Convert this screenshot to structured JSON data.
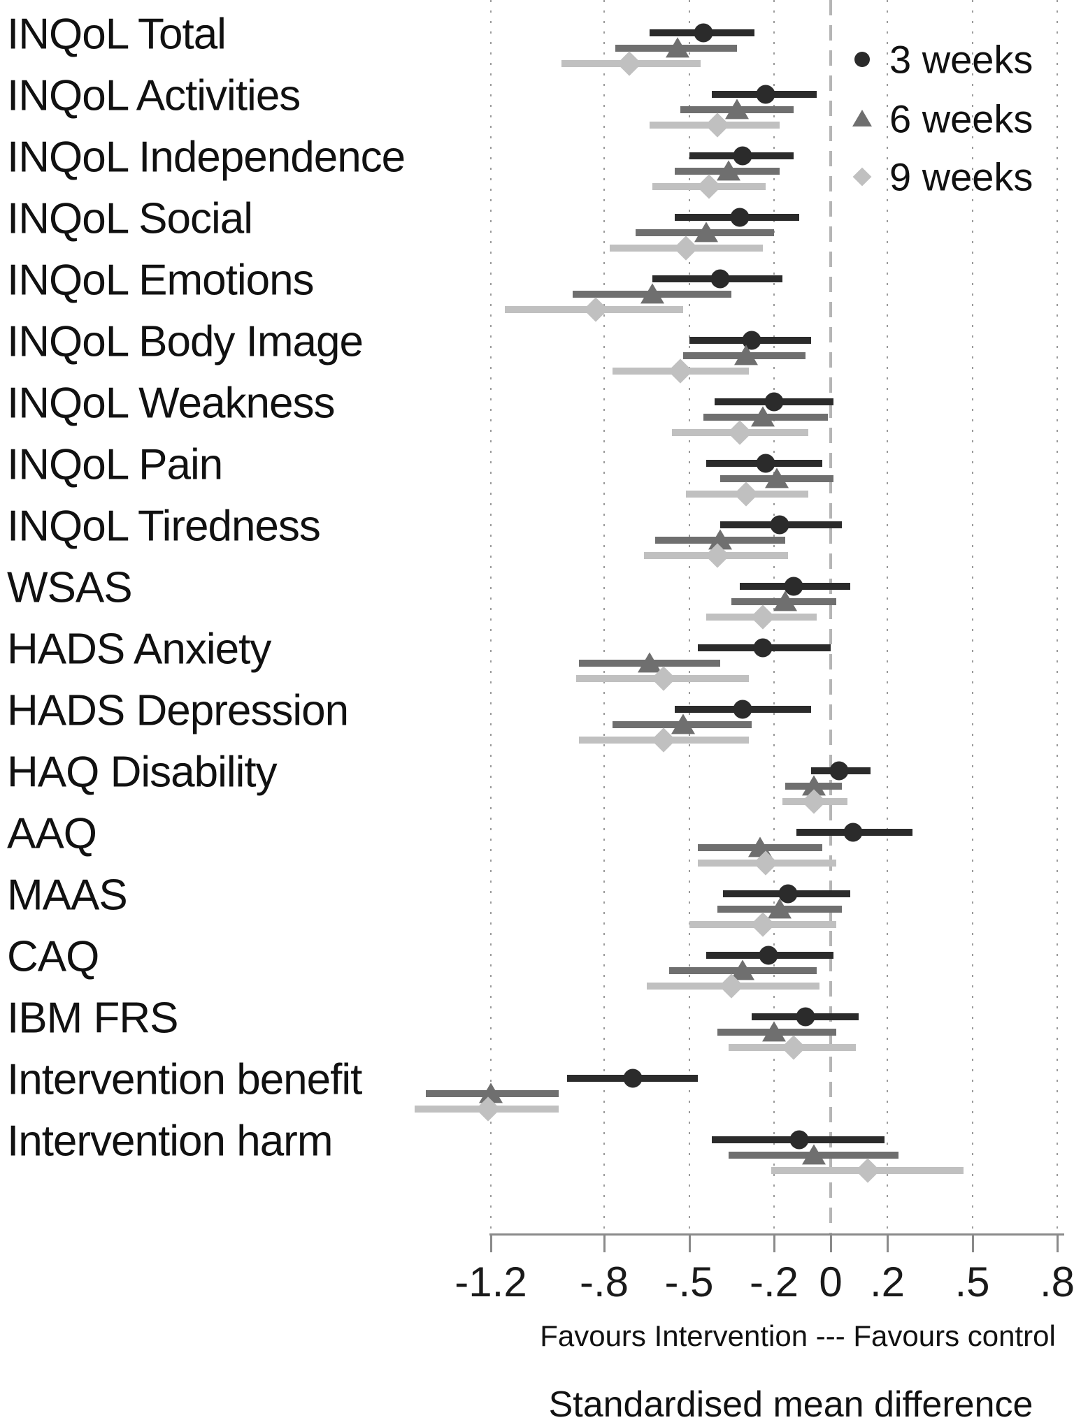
{
  "chart_data": {
    "type": "scatter",
    "variant": "forest-plot",
    "title": "",
    "xlabel": "Standardised mean difference",
    "x_note": "Favours Intervention --- Favours control",
    "xlim": [
      -1.55,
      0.85
    ],
    "ticks": [
      -1.2,
      -0.8,
      -0.5,
      -0.2,
      0,
      0.2,
      0.5,
      0.8
    ],
    "tick_labels": [
      "-1.2",
      "-.8",
      "-.5",
      "-.2",
      "0",
      ".2",
      ".5",
      ".8"
    ],
    "grid": "dotted vertical gridline at every tick; long-dashed vertical reference line at 0",
    "legend_position": "top-right inside plot",
    "colors": {
      "3_weeks": "#2b2b2b",
      "6_weeks": "#6f6f6f",
      "9_weeks": "#c0c0c0",
      "axis": "#8a8a8a",
      "gridline": "#9b9b9b",
      "zero_line": "#b5b5b5",
      "text": "#111111"
    },
    "outcomes": [
      "INQoL Total",
      "INQoL Activities",
      "INQoL Independence",
      "INQoL Social",
      "INQoL Emotions",
      "INQoL Body Image",
      "INQoL Weakness",
      "INQoL Pain",
      "INQoL Tiredness",
      "WSAS",
      "HADS Anxiety",
      "HADS Depression",
      "HAQ Disability",
      "AAQ",
      "MAAS",
      "CAQ",
      "IBM FRS",
      "Intervention benefit",
      "Intervention harm"
    ],
    "series": [
      {
        "name": "3 weeks",
        "marker": "circle",
        "color": "#2b2b2b",
        "values": [
          {
            "est": -0.45,
            "ci": [
              -0.64,
              -0.27
            ]
          },
          {
            "est": -0.23,
            "ci": [
              -0.42,
              -0.05
            ]
          },
          {
            "est": -0.31,
            "ci": [
              -0.5,
              -0.13
            ]
          },
          {
            "est": -0.32,
            "ci": [
              -0.55,
              -0.11
            ]
          },
          {
            "est": -0.39,
            "ci": [
              -0.63,
              -0.17
            ]
          },
          {
            "est": -0.28,
            "ci": [
              -0.5,
              -0.07
            ]
          },
          {
            "est": -0.2,
            "ci": [
              -0.41,
              0.01
            ]
          },
          {
            "est": -0.23,
            "ci": [
              -0.44,
              -0.03
            ]
          },
          {
            "est": -0.18,
            "ci": [
              -0.39,
              0.04
            ]
          },
          {
            "est": -0.13,
            "ci": [
              -0.32,
              0.07
            ]
          },
          {
            "est": -0.24,
            "ci": [
              -0.47,
              0.0
            ]
          },
          {
            "est": -0.31,
            "ci": [
              -0.55,
              -0.07
            ]
          },
          {
            "est": 0.03,
            "ci": [
              -0.07,
              0.14
            ]
          },
          {
            "est": 0.08,
            "ci": [
              -0.12,
              0.29
            ]
          },
          {
            "est": -0.15,
            "ci": [
              -0.38,
              0.07
            ]
          },
          {
            "est": -0.22,
            "ci": [
              -0.44,
              0.01
            ]
          },
          {
            "est": -0.09,
            "ci": [
              -0.28,
              0.1
            ]
          },
          {
            "est": -0.7,
            "ci": [
              -0.93,
              -0.47
            ]
          },
          {
            "est": -0.11,
            "ci": [
              -0.42,
              0.19
            ]
          }
        ]
      },
      {
        "name": "6 weeks",
        "marker": "triangle",
        "color": "#6f6f6f",
        "values": [
          {
            "est": -0.54,
            "ci": [
              -0.76,
              -0.33
            ]
          },
          {
            "est": -0.33,
            "ci": [
              -0.53,
              -0.13
            ]
          },
          {
            "est": -0.36,
            "ci": [
              -0.55,
              -0.18
            ]
          },
          {
            "est": -0.44,
            "ci": [
              -0.69,
              -0.2
            ]
          },
          {
            "est": -0.63,
            "ci": [
              -0.91,
              -0.35
            ]
          },
          {
            "est": -0.3,
            "ci": [
              -0.52,
              -0.09
            ]
          },
          {
            "est": -0.24,
            "ci": [
              -0.45,
              -0.01
            ]
          },
          {
            "est": -0.19,
            "ci": [
              -0.39,
              0.01
            ]
          },
          {
            "est": -0.39,
            "ci": [
              -0.62,
              -0.16
            ]
          },
          {
            "est": -0.16,
            "ci": [
              -0.35,
              0.02
            ]
          },
          {
            "est": -0.64,
            "ci": [
              -0.89,
              -0.39
            ]
          },
          {
            "est": -0.52,
            "ci": [
              -0.77,
              -0.28
            ]
          },
          {
            "est": -0.06,
            "ci": [
              -0.16,
              0.04
            ]
          },
          {
            "est": -0.25,
            "ci": [
              -0.47,
              -0.03
            ]
          },
          {
            "est": -0.18,
            "ci": [
              -0.4,
              0.04
            ]
          },
          {
            "est": -0.31,
            "ci": [
              -0.57,
              -0.05
            ]
          },
          {
            "est": -0.2,
            "ci": [
              -0.4,
              0.02
            ]
          },
          {
            "est": -1.2,
            "ci": [
              -1.43,
              -0.96
            ]
          },
          {
            "est": -0.06,
            "ci": [
              -0.36,
              0.24
            ]
          }
        ]
      },
      {
        "name": "9 weeks",
        "marker": "diamond",
        "color": "#c0c0c0",
        "values": [
          {
            "est": -0.71,
            "ci": [
              -0.95,
              -0.46
            ]
          },
          {
            "est": -0.4,
            "ci": [
              -0.64,
              -0.18
            ]
          },
          {
            "est": -0.43,
            "ci": [
              -0.63,
              -0.23
            ]
          },
          {
            "est": -0.51,
            "ci": [
              -0.78,
              -0.24
            ]
          },
          {
            "est": -0.83,
            "ci": [
              -1.15,
              -0.52
            ]
          },
          {
            "est": -0.53,
            "ci": [
              -0.77,
              -0.29
            ]
          },
          {
            "est": -0.32,
            "ci": [
              -0.56,
              -0.08
            ]
          },
          {
            "est": -0.3,
            "ci": [
              -0.51,
              -0.08
            ]
          },
          {
            "est": -0.4,
            "ci": [
              -0.66,
              -0.15
            ]
          },
          {
            "est": -0.24,
            "ci": [
              -0.44,
              -0.05
            ]
          },
          {
            "est": -0.59,
            "ci": [
              -0.9,
              -0.29
            ]
          },
          {
            "est": -0.59,
            "ci": [
              -0.89,
              -0.29
            ]
          },
          {
            "est": -0.06,
            "ci": [
              -0.17,
              0.06
            ]
          },
          {
            "est": -0.23,
            "ci": [
              -0.47,
              0.02
            ]
          },
          {
            "est": -0.24,
            "ci": [
              -0.5,
              0.02
            ]
          },
          {
            "est": -0.35,
            "ci": [
              -0.65,
              -0.04
            ]
          },
          {
            "est": -0.13,
            "ci": [
              -0.36,
              0.09
            ]
          },
          {
            "est": -1.21,
            "ci": [
              -1.47,
              -0.96
            ]
          },
          {
            "est": 0.13,
            "ci": [
              -0.21,
              0.47
            ]
          }
        ]
      }
    ]
  }
}
